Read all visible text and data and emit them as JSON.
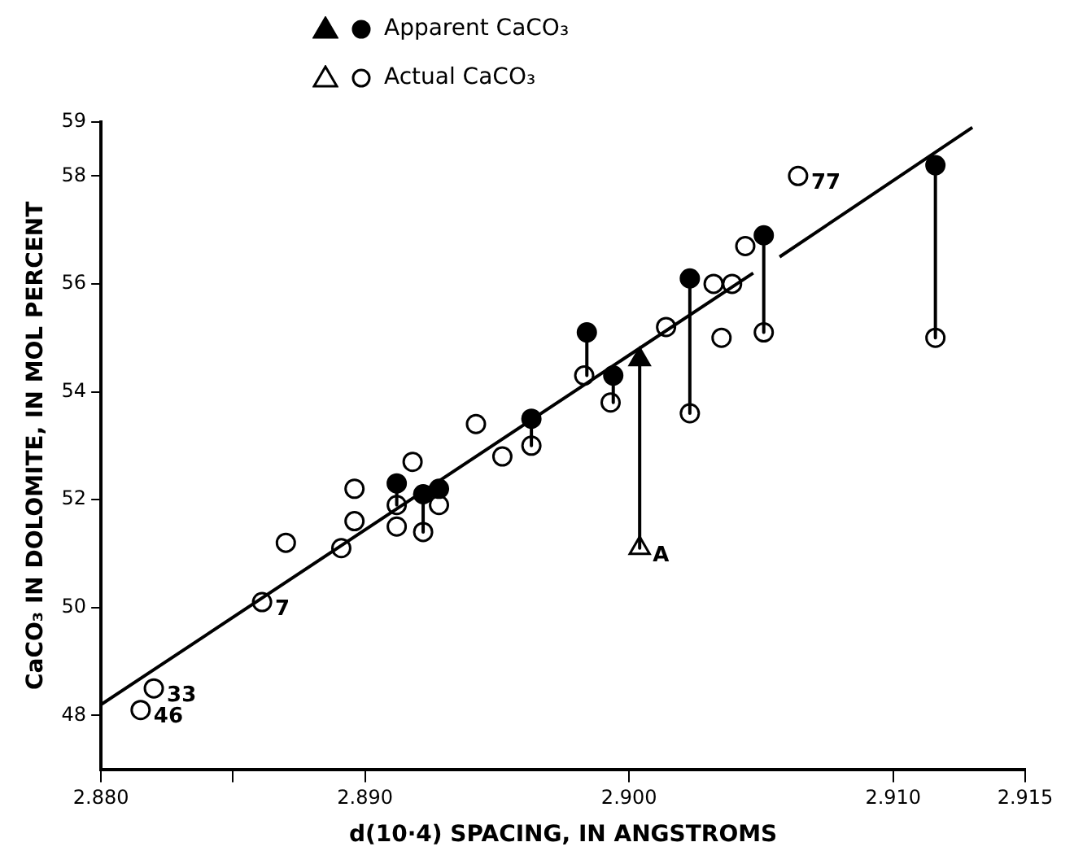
{
  "chart_data": {
    "type": "scatter",
    "xlabel": "d(10·4) SPACING, IN ANGSTROMS",
    "ylabel": "CaCO₃ IN DOLOMITE, IN MOL PERCENT",
    "xlim": [
      2.88,
      2.915
    ],
    "xticks": [
      {
        "value": 2.88,
        "label": "2.880"
      },
      {
        "value": 2.885,
        "label": null
      },
      {
        "value": 2.89,
        "label": "2.890"
      },
      {
        "value": 2.9,
        "label": "2.900"
      },
      {
        "value": 2.91,
        "label": "2.910"
      },
      2.915
    ],
    "ylim": [
      47,
      59
    ],
    "yticks": [
      48,
      50,
      52,
      54,
      56,
      58,
      59
    ],
    "grid": false,
    "legend": "top left",
    "series": [
      {
        "type": "line",
        "color": "#000000",
        "marker": "none",
        "x": [
          2.88,
          2.9047,
          null,
          2.9057,
          2.913
        ],
        "values": [
          48.2,
          56.2,
          null,
          56.5,
          58.9
        ]
      },
      {
        "type": "line",
        "color": "#000000",
        "marker": "none",
        "x": [
          2.8912,
          2.8912,
          null,
          2.8922,
          2.8922,
          null,
          2.8963,
          2.8963,
          null,
          2.8984,
          2.8984,
          null,
          2.8994,
          2.8994,
          null,
          2.9004,
          2.9004,
          null,
          2.9023,
          2.9023,
          null,
          2.9051,
          2.9051,
          null,
          2.9116,
          2.9116
        ],
        "values": [
          52.3,
          51.9,
          null,
          52.1,
          51.4,
          null,
          53.5,
          53.0,
          null,
          55.1,
          54.3,
          null,
          54.3,
          53.8,
          null,
          54.6,
          51.1,
          null,
          56.1,
          53.6,
          null,
          56.9,
          55.1,
          null,
          58.2,
          55.0
        ]
      },
      {
        "name": "Apparent CaCO₃",
        "color": "#000000",
        "marker": "circle",
        "x": [
          2.8912,
          2.8922,
          2.8928,
          2.8963,
          2.8984,
          2.8994,
          2.9023,
          2.9051,
          2.9116
        ],
        "values": [
          52.3,
          52.1,
          52.2,
          53.5,
          55.1,
          54.3,
          56.1,
          56.9,
          58.2
        ]
      },
      {
        "color": "#000000",
        "marker": "triangle",
        "x": [
          2.9004
        ],
        "values": [
          54.6
        ]
      },
      {
        "name": "Actual CaCO₃",
        "color": "#ffffff",
        "marker": "circle",
        "x": [
          2.8815,
          2.882,
          2.8861,
          2.887,
          2.8891,
          2.8896,
          2.8896,
          2.8912,
          2.8912,
          2.8918,
          2.8928,
          2.8922,
          2.8942,
          2.8952,
          2.8963,
          2.8983,
          2.8993,
          2.9014,
          2.9023,
          2.9032,
          2.9039,
          2.9035,
          2.9044,
          2.9051,
          2.9064,
          2.9116
        ],
        "values": [
          48.1,
          48.5,
          50.1,
          51.2,
          51.1,
          51.6,
          52.2,
          51.9,
          51.5,
          52.7,
          51.9,
          51.4,
          53.4,
          52.8,
          53.0,
          54.3,
          53.8,
          55.2,
          53.6,
          56.0,
          56.0,
          55.0,
          56.7,
          55.1,
          58.0,
          55.0
        ]
      },
      {
        "color": "#ffffff",
        "marker": "triangle",
        "x": [
          2.9004
        ],
        "values": [
          51.1
        ]
      }
    ],
    "annotations": [
      {
        "text": "46",
        "x": 2.8815,
        "y": 48.1
      },
      {
        "text": "33",
        "x": 2.882,
        "y": 48.5
      },
      {
        "text": "7",
        "x": 2.8861,
        "y": 50.1
      },
      {
        "text": "77",
        "x": 2.9064,
        "y": 58.0
      },
      {
        "text": "A",
        "x": 2.9004,
        "y": 51.1
      }
    ]
  }
}
